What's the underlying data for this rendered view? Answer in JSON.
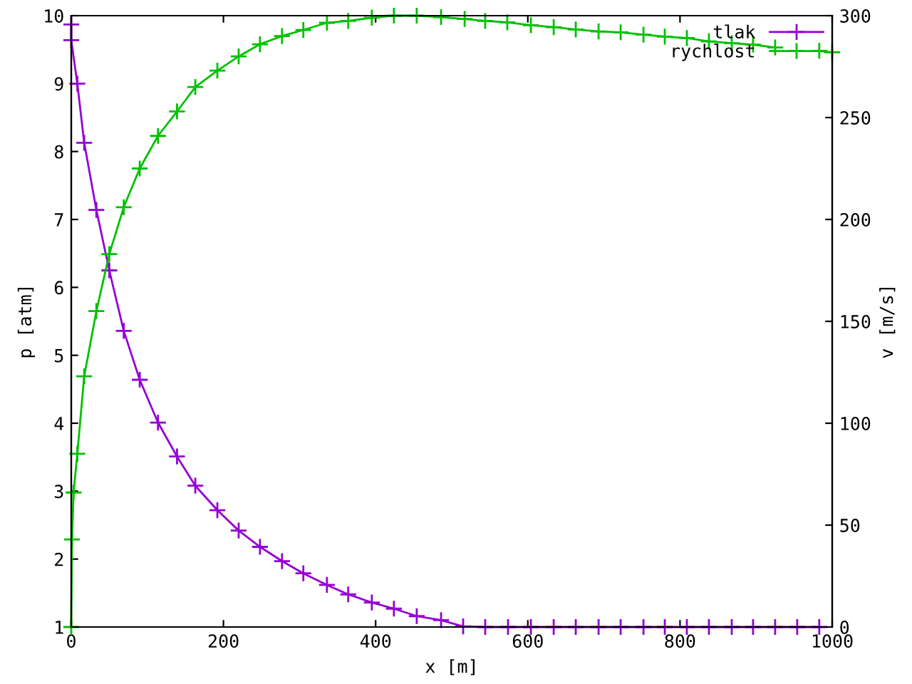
{
  "chart_data": {
    "type": "line",
    "xlabel": "x [m]",
    "ylabel": "p [atm]",
    "y2label": "v [m/s]",
    "xlim": [
      0,
      1000
    ],
    "xticks": [
      0,
      200,
      400,
      600,
      800,
      1000
    ],
    "ylim": [
      1,
      10
    ],
    "yticks": [
      1,
      2,
      3,
      4,
      5,
      6,
      7,
      8,
      9,
      10
    ],
    "y2lim": [
      0,
      300
    ],
    "y2ticks": [
      0,
      50,
      100,
      150,
      200,
      250,
      300
    ],
    "grid": false,
    "legend": "top right",
    "marker": "cross",
    "line_style": "solid",
    "series": [
      {
        "name": "tlak",
        "color": "#9400d3",
        "x": [
          0,
          0,
          8,
          17,
          33,
          50,
          69,
          90,
          114,
          139,
          163,
          192,
          220,
          248,
          277,
          305,
          336,
          364,
          395,
          424,
          454,
          486,
          515,
          544,
          574,
          604,
          634,
          663,
          693,
          722,
          752,
          780,
          809,
          838,
          868,
          896,
          925,
          954,
          983
        ],
        "values": [
          9.87,
          9.64,
          9.0,
          8.13,
          7.14,
          6.25,
          5.36,
          4.64,
          4.01,
          3.51,
          3.08,
          2.72,
          2.42,
          2.18,
          1.97,
          1.79,
          1.62,
          1.48,
          1.36,
          1.27,
          1.16,
          1.1,
          1.01,
          1,
          1,
          1,
          1,
          1,
          1,
          1,
          1,
          1,
          1,
          1,
          1,
          1,
          1,
          1,
          1
        ]
      },
      {
        "name": "rychlost",
        "color": "#00c000",
        "axis": "y2",
        "x": [
          0,
          1,
          3,
          8,
          17,
          33,
          50,
          69,
          90,
          114,
          139,
          163,
          192,
          220,
          248,
          277,
          305,
          336,
          364,
          395,
          424,
          454,
          486,
          517,
          544,
          573,
          604,
          634,
          663,
          693,
          722,
          752,
          780,
          809,
          838,
          868,
          896,
          925,
          954,
          983,
          1000
        ],
        "values": [
          0,
          43,
          66,
          85,
          123,
          155,
          183,
          206,
          225,
          241,
          253,
          265,
          273,
          280,
          286,
          290,
          293,
          296.5,
          297.4,
          299,
          300,
          300,
          299.3,
          298.4,
          297.4,
          296.7,
          295.3,
          294.4,
          293.2,
          292.3,
          291.8,
          290.7,
          289.7,
          289,
          287.4,
          286.5,
          285.8,
          284.4,
          null,
          282.7,
          282
        ]
      }
    ]
  }
}
